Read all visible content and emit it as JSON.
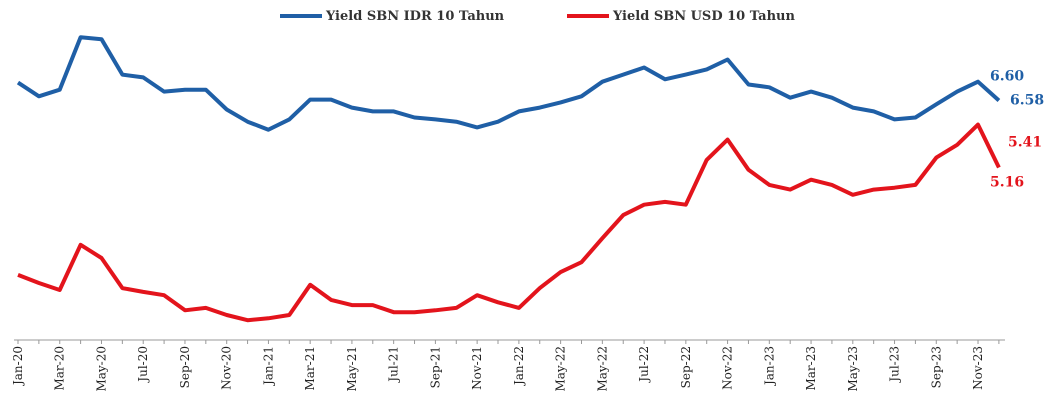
{
  "chart_data": {
    "type": "line",
    "categories": [
      "Jan-20",
      null,
      "Mar-20",
      null,
      "May-20",
      null,
      "Jul-20",
      null,
      "Sep-20",
      null,
      "Nov-20",
      null,
      "Jan-21",
      null,
      "Mar-21",
      null,
      "May-21",
      null,
      "Jul-21",
      null,
      "Sep-21",
      null,
      "Nov-21",
      null,
      "Jan-22",
      null,
      "May-22",
      null,
      "May-22",
      null,
      "Jul-22",
      null,
      "Sep-22",
      null,
      "Nov-22",
      null,
      "Jan-23",
      null,
      "Mar-23",
      null,
      "May-23",
      null,
      "Jul-23",
      null,
      "Sep-23",
      null,
      "Nov-23",
      null
    ],
    "series": [
      {
        "name": "Yield SBN IDR 10 Tahun",
        "color": "#1f5fa6",
        "values": [
          6.96,
          6.67,
          6.81,
          7.92,
          7.88,
          7.13,
          7.07,
          6.77,
          6.81,
          6.81,
          6.39,
          6.13,
          5.96,
          6.18,
          6.6,
          6.6,
          6.43,
          6.35,
          6.35,
          6.22,
          6.18,
          6.13,
          6.01,
          6.13,
          6.35,
          6.43,
          6.54,
          6.67,
          6.98,
          7.13,
          7.28,
          7.03,
          7.13,
          7.24,
          7.45,
          6.92,
          6.86,
          6.64,
          6.77,
          6.64,
          6.43,
          6.35,
          6.18,
          6.22,
          6.5,
          6.77,
          6.98,
          6.58
        ],
        "annotations": [
          "6.60",
          "6.58"
        ]
      },
      {
        "name": "Yield SBN USD 10 Tahun",
        "color": "#e3141c",
        "values": [
          2.88,
          2.71,
          2.56,
          3.52,
          3.24,
          2.6,
          2.52,
          2.45,
          2.13,
          2.18,
          2.03,
          1.92,
          1.96,
          2.03,
          2.67,
          2.35,
          2.24,
          2.24,
          2.09,
          2.09,
          2.13,
          2.18,
          2.45,
          2.3,
          2.18,
          2.6,
          2.94,
          3.15,
          3.66,
          4.15,
          4.37,
          4.43,
          4.37,
          5.32,
          5.75,
          5.11,
          4.79,
          4.69,
          4.9,
          4.79,
          4.58,
          4.69,
          4.73,
          4.79,
          5.37,
          5.64,
          6.07,
          5.16
        ],
        "annotations": [
          "5.41",
          "5.16"
        ]
      }
    ],
    "ylim": [
      1.5,
      8.5
    ]
  }
}
